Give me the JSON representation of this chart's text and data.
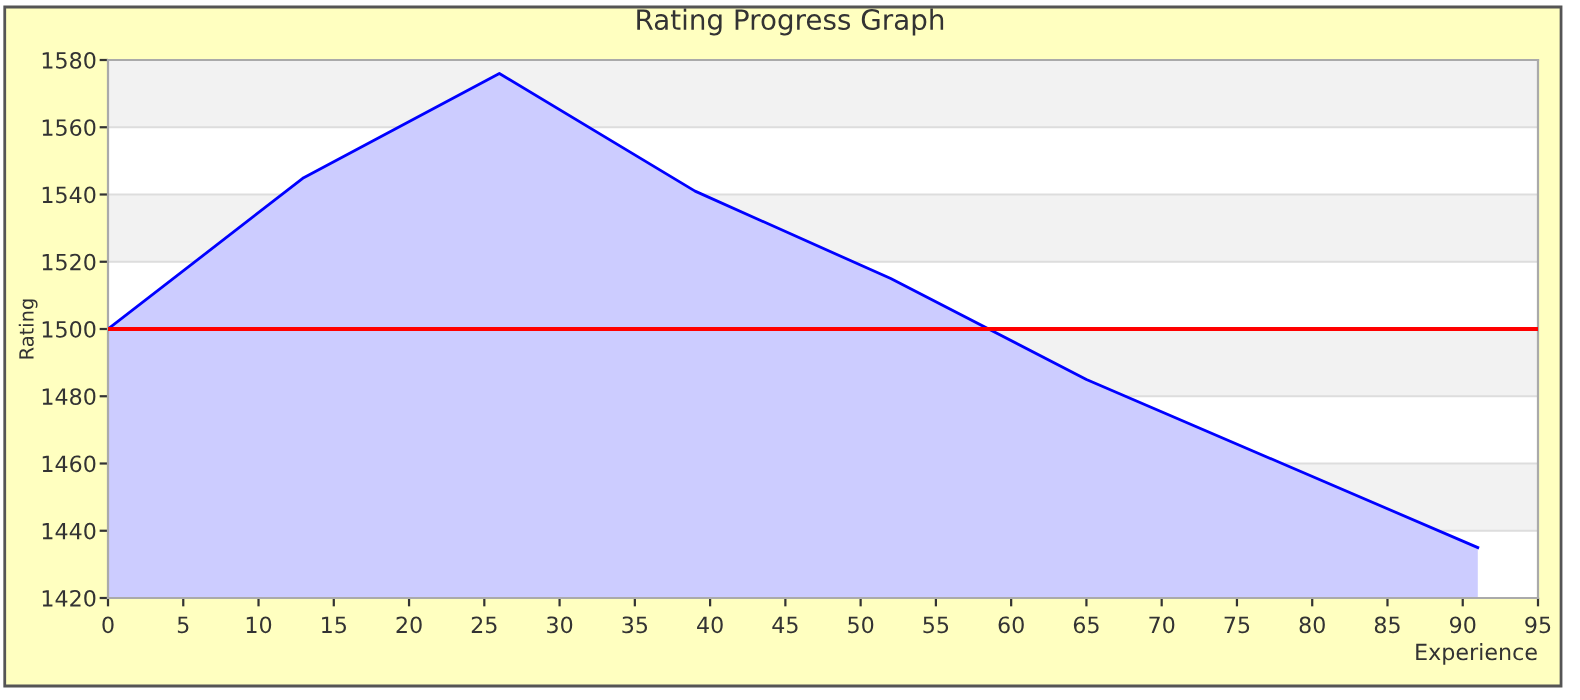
{
  "chart_data": {
    "type": "area",
    "title": "Rating Progress Graph",
    "xlabel": "Experience",
    "ylabel": "Rating",
    "x": [
      0,
      13,
      26,
      39,
      52,
      65,
      78,
      91
    ],
    "series": [
      {
        "color": "#0000ff",
        "values": [
          1500,
          1545,
          1576,
          1541,
          1515,
          1485,
          1460,
          1435
        ]
      }
    ],
    "xlim": [
      0,
      95
    ],
    "xticks": [
      0,
      5,
      10,
      15,
      20,
      25,
      30,
      35,
      40,
      45,
      50,
      55,
      60,
      65,
      70,
      75,
      80,
      85,
      90,
      95
    ],
    "ylim": [
      1420,
      1580
    ],
    "yticks": [
      1420,
      1440,
      1460,
      1480,
      1500,
      1520,
      1540,
      1560,
      1580
    ],
    "ref_lines": [
      {
        "axis": "y",
        "value": 1500,
        "color": "#ff0000"
      }
    ],
    "grid": "y",
    "legend": false
  }
}
